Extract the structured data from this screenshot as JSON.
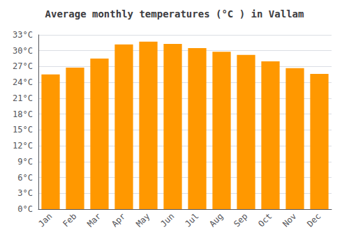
{
  "chart_data": {
    "type": "bar",
    "title": "Average monthly temperatures (°C ) in Vallam",
    "categories": [
      "Jan",
      "Feb",
      "Mar",
      "Apr",
      "May",
      "Jun",
      "Jul",
      "Aug",
      "Sep",
      "Oct",
      "Nov",
      "Dec"
    ],
    "values": [
      25.5,
      26.8,
      28.5,
      31.2,
      31.7,
      31.3,
      30.5,
      29.8,
      29.2,
      28.0,
      26.7,
      25.6
    ],
    "color": "#FF9800",
    "ylim": [
      0,
      33
    ],
    "yticks": [
      {
        "value": 0,
        "label": "0°C"
      },
      {
        "value": 3,
        "label": "3°C"
      },
      {
        "value": 6,
        "label": "6°C"
      },
      {
        "value": 9,
        "label": "9°C"
      },
      {
        "value": 12,
        "label": "12°C"
      },
      {
        "value": 15,
        "label": "15°C"
      },
      {
        "value": 18,
        "label": "18°C"
      },
      {
        "value": 21,
        "label": "21°C"
      },
      {
        "value": 24,
        "label": "24°C"
      },
      {
        "value": 27,
        "label": "27°C"
      },
      {
        "value": 30,
        "label": "30°C"
      },
      {
        "value": 33,
        "label": "33°C"
      }
    ],
    "grid": true
  }
}
